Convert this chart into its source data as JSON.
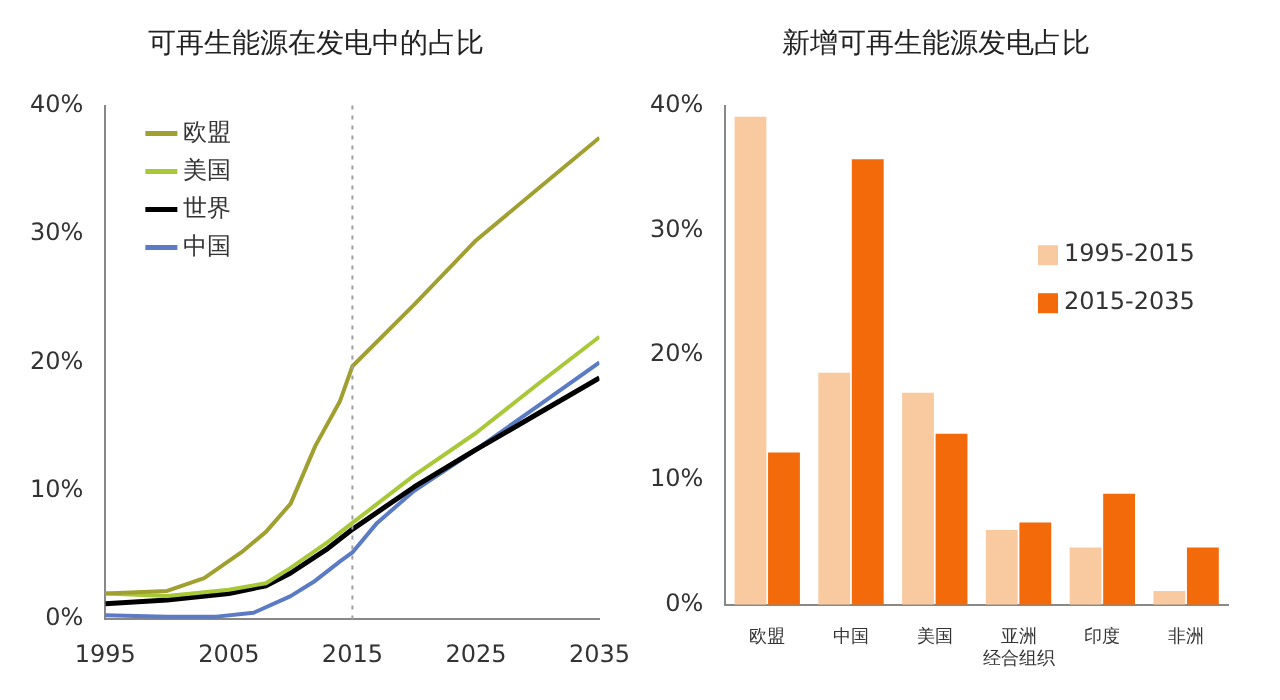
{
  "chart_data": [
    {
      "type": "line",
      "title": "可再生能源在发电中的占比",
      "xlim": [
        1995,
        2035
      ],
      "xticks": [
        1995,
        2005,
        2015,
        2025,
        2035
      ],
      "ylim": [
        0,
        40
      ],
      "yticks": [
        {
          "value": 0,
          "label": "0%"
        },
        {
          "value": 10,
          "label": "10%"
        },
        {
          "value": 20,
          "label": "20%"
        },
        {
          "value": 30,
          "label": "30%"
        },
        {
          "value": 40,
          "label": "40%"
        }
      ],
      "grid": false,
      "legend": "top left",
      "ref_lines": [
        {
          "axis": "x",
          "value": 2015,
          "color": "#a0a0a0",
          "line_style": "dotted"
        }
      ],
      "series": [
        {
          "name": "欧盟",
          "color": "#a0a030",
          "x": [
            1995,
            2000,
            2003,
            2006,
            2008,
            2010,
            2012,
            2014,
            2015,
            2020,
            2025,
            2030,
            2035
          ],
          "values": [
            2.0,
            2.2,
            3.2,
            5.2,
            6.8,
            9.0,
            13.5,
            17.0,
            19.7,
            24.5,
            29.5,
            33.5,
            37.5
          ]
        },
        {
          "name": "美国",
          "color": "#a8c838",
          "x": [
            1995,
            2000,
            2005,
            2008,
            2010,
            2013,
            2015,
            2020,
            2025,
            2030,
            2035
          ],
          "values": [
            2.0,
            1.8,
            2.3,
            2.8,
            4.0,
            6.0,
            7.5,
            11.2,
            14.5,
            18.3,
            22.0
          ]
        },
        {
          "name": "世界",
          "color": "#000000",
          "x": [
            1995,
            2000,
            2005,
            2008,
            2010,
            2013,
            2015,
            2020,
            2025,
            2030,
            2035
          ],
          "values": [
            1.2,
            1.5,
            2.0,
            2.6,
            3.6,
            5.5,
            7.0,
            10.3,
            13.2,
            16.0,
            18.8
          ]
        },
        {
          "name": "中国",
          "color": "#5b7bc4",
          "x": [
            1995,
            2000,
            2004,
            2007,
            2010,
            2012,
            2014,
            2015,
            2017,
            2020,
            2025,
            2030,
            2035
          ],
          "values": [
            0.3,
            0.2,
            0.2,
            0.5,
            1.8,
            3.0,
            4.5,
            5.2,
            7.5,
            10.0,
            13.2,
            16.6,
            20.0
          ]
        }
      ]
    },
    {
      "type": "bar",
      "title": "新增可再生能源发电占比",
      "categories": [
        "欧盟",
        "中国",
        "美国",
        "亚洲经合组织",
        "印度",
        "非洲"
      ],
      "ylim": [
        0,
        40
      ],
      "yticks": [
        {
          "value": 0,
          "label": "0%"
        },
        {
          "value": 10,
          "label": "10%"
        },
        {
          "value": 20,
          "label": "20%"
        },
        {
          "value": 30,
          "label": "30%"
        },
        {
          "value": 40,
          "label": "40%"
        }
      ],
      "grid": false,
      "legend": "right",
      "series": [
        {
          "name": "1995-2015",
          "color": "#f9c9a0",
          "values": [
            39.1,
            18.6,
            17.0,
            6.0,
            4.6,
            1.1
          ]
        },
        {
          "name": "2015-2035",
          "color": "#f26a0a",
          "values": [
            12.2,
            35.7,
            13.7,
            6.6,
            8.9,
            4.6
          ]
        }
      ]
    }
  ]
}
